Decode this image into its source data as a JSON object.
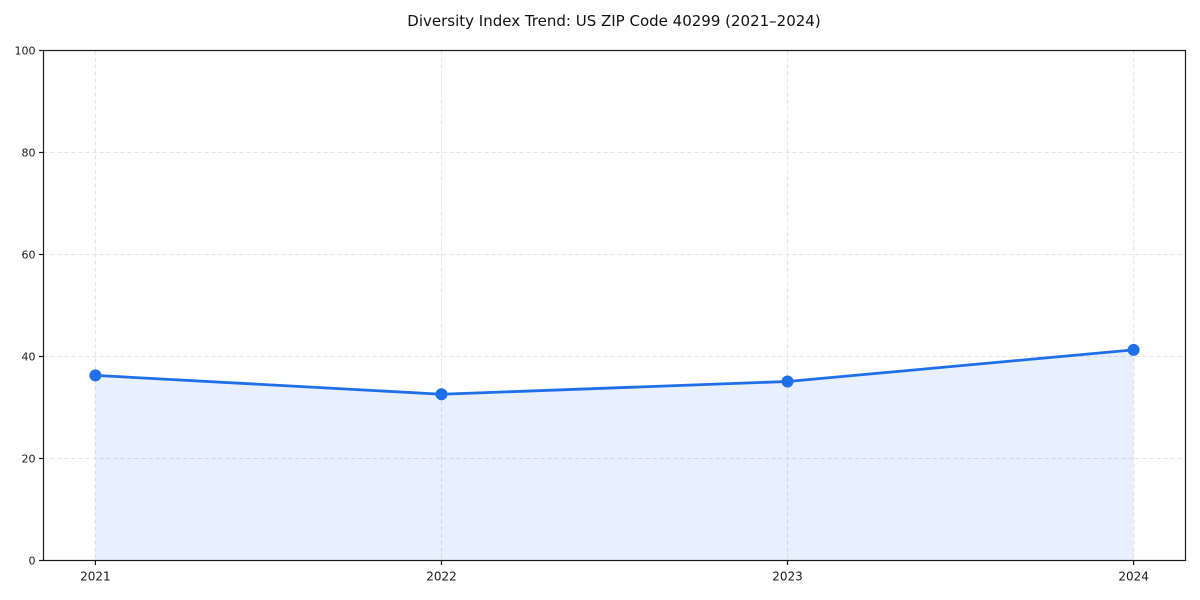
{
  "chart_data": {
    "type": "area",
    "title": "Diversity Index Trend: US ZIP Code 40299 (2021–2024)",
    "x": [
      2021,
      2022,
      2023,
      2024
    ],
    "categories": [
      "2021",
      "2022",
      "2023",
      "2024"
    ],
    "series": [
      {
        "name": "Diversity Index",
        "values": [
          36.3,
          32.6,
          35.1,
          41.3
        ]
      }
    ],
    "xlabel": "",
    "ylabel": "",
    "ylim": [
      0,
      100
    ],
    "yticks": [
      0,
      20,
      40,
      60,
      80,
      100
    ],
    "xticks": [
      "2021",
      "2022",
      "2023",
      "2024"
    ],
    "grid": true,
    "grid_style": "dashed",
    "legend_position": "none",
    "line_color": "#1e6fe8",
    "marker_color": "#1e6fe8",
    "fill_color": "#1e6fe8",
    "fill_opacity": 0.1,
    "grid_color": "#e3e3e3",
    "spine_color": "#1a1a1a",
    "background_color": "#ffffff"
  }
}
